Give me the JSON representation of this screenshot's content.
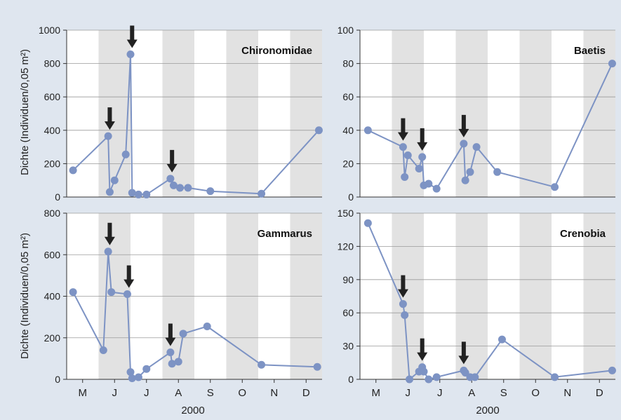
{
  "shared": {
    "ylabel": "Dichte (Individuen/0,05 m²)",
    "xlabel": "2000",
    "months": [
      "M",
      "J",
      "J",
      "A",
      "S",
      "O",
      "N",
      "D"
    ],
    "colors": {
      "line": "#7d93c4",
      "marker": "#7d93c4",
      "shade": "#e2e2e2",
      "panel": "#ffffff",
      "grid": "#9a9a9a",
      "arrow": "#222222",
      "background": "#dfe6ef"
    }
  },
  "chart_data": [
    {
      "type": "line",
      "title": "Chironomidae",
      "ylim": [
        0,
        1000
      ],
      "yticks": [
        0,
        200,
        400,
        600,
        800,
        1000
      ],
      "ytick_labels": [
        "0",
        "200",
        "400",
        "600",
        "800",
        "1000"
      ],
      "x_unit": "month index (0 = start of May 2000)",
      "series": [
        {
          "x": [
            0.2,
            1.3,
            1.35,
            1.5,
            1.85,
            2.0,
            2.05,
            2.25,
            2.5,
            3.25,
            3.35,
            3.55,
            3.8,
            4.5,
            6.1,
            7.9
          ],
          "y": [
            160,
            365,
            30,
            100,
            255,
            855,
            25,
            15,
            15,
            110,
            70,
            55,
            55,
            35,
            20,
            400
          ]
        }
      ],
      "arrows_x": [
        1.35,
        2.05,
        3.3
      ]
    },
    {
      "type": "line",
      "title": "Baetis",
      "ylim": [
        0,
        100
      ],
      "yticks": [
        0,
        20,
        40,
        60,
        80,
        100
      ],
      "ytick_labels": [
        "0",
        "20",
        "40",
        "60",
        "80",
        "100"
      ],
      "x_unit": "month index (0 = start of May 2000)",
      "series": [
        {
          "x": [
            0.25,
            1.35,
            1.4,
            1.5,
            1.85,
            1.95,
            2.0,
            2.15,
            2.4,
            3.25,
            3.3,
            3.45,
            3.65,
            4.3,
            6.1,
            7.9
          ],
          "y": [
            40,
            30,
            12,
            25,
            17,
            24,
            7,
            8,
            5,
            32,
            10,
            15,
            30,
            15,
            6,
            80
          ]
        }
      ],
      "arrows_x": [
        1.35,
        1.95,
        3.25
      ]
    },
    {
      "type": "line",
      "title": "Gammarus",
      "ylim": [
        0,
        800
      ],
      "yticks": [
        0,
        200,
        400,
        600,
        800
      ],
      "ytick_labels": [
        "0",
        "200",
        "400",
        "600",
        "800"
      ],
      "x_unit": "month index (0 = start of May 2000)",
      "series": [
        {
          "x": [
            0.2,
            1.15,
            1.3,
            1.4,
            1.9,
            2.0,
            2.05,
            2.25,
            2.5,
            3.25,
            3.3,
            3.5,
            3.65,
            4.4,
            6.1,
            7.85
          ],
          "y": [
            420,
            140,
            615,
            420,
            410,
            35,
            5,
            10,
            50,
            130,
            75,
            85,
            220,
            255,
            70,
            60
          ]
        }
      ],
      "arrows_x": [
        1.35,
        1.95,
        3.25
      ]
    },
    {
      "type": "line",
      "title": "Crenobia",
      "ylim": [
        0,
        150
      ],
      "yticks": [
        0,
        30,
        60,
        90,
        120,
        150
      ],
      "ytick_labels": [
        "0",
        "30",
        "60",
        "90",
        "120",
        "150"
      ],
      "x_unit": "month index (0 = start of May 2000)",
      "series": [
        {
          "x": [
            0.25,
            1.35,
            1.4,
            1.55,
            1.85,
            1.95,
            2.0,
            2.15,
            2.4,
            3.25,
            3.3,
            3.45,
            3.6,
            4.45,
            6.1,
            7.9
          ],
          "y": [
            141,
            68,
            58,
            0,
            7,
            11,
            7,
            0,
            2,
            8,
            6,
            2,
            2,
            36,
            2,
            8
          ]
        }
      ],
      "arrows_x": [
        1.35,
        1.95,
        3.25
      ]
    }
  ]
}
